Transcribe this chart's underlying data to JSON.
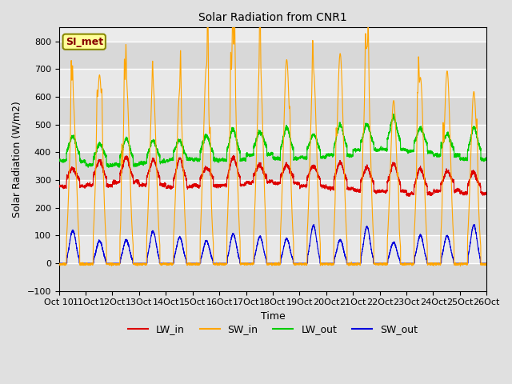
{
  "title": "Solar Radiation from CNR1",
  "xlabel": "Time",
  "ylabel": "Solar Radiation (W/m2)",
  "ylim": [
    -100,
    850
  ],
  "yticks": [
    -100,
    0,
    100,
    200,
    300,
    400,
    500,
    600,
    700,
    800
  ],
  "xlim": [
    10,
    26
  ],
  "n_days": 16,
  "start_day": 10,
  "points_per_day": 288,
  "colors": {
    "LW_in": "#dd0000",
    "SW_in": "#ffa500",
    "LW_out": "#00cc00",
    "SW_out": "#0000dd"
  },
  "fig_bg": "#e0e0e0",
  "plot_bg": "#ebebeb",
  "grid_color": "#ffffff",
  "annotation_text": "SI_met",
  "annotation_bg": "#ffff99",
  "annotation_edge": "#888800",
  "annotation_text_color": "#880000"
}
